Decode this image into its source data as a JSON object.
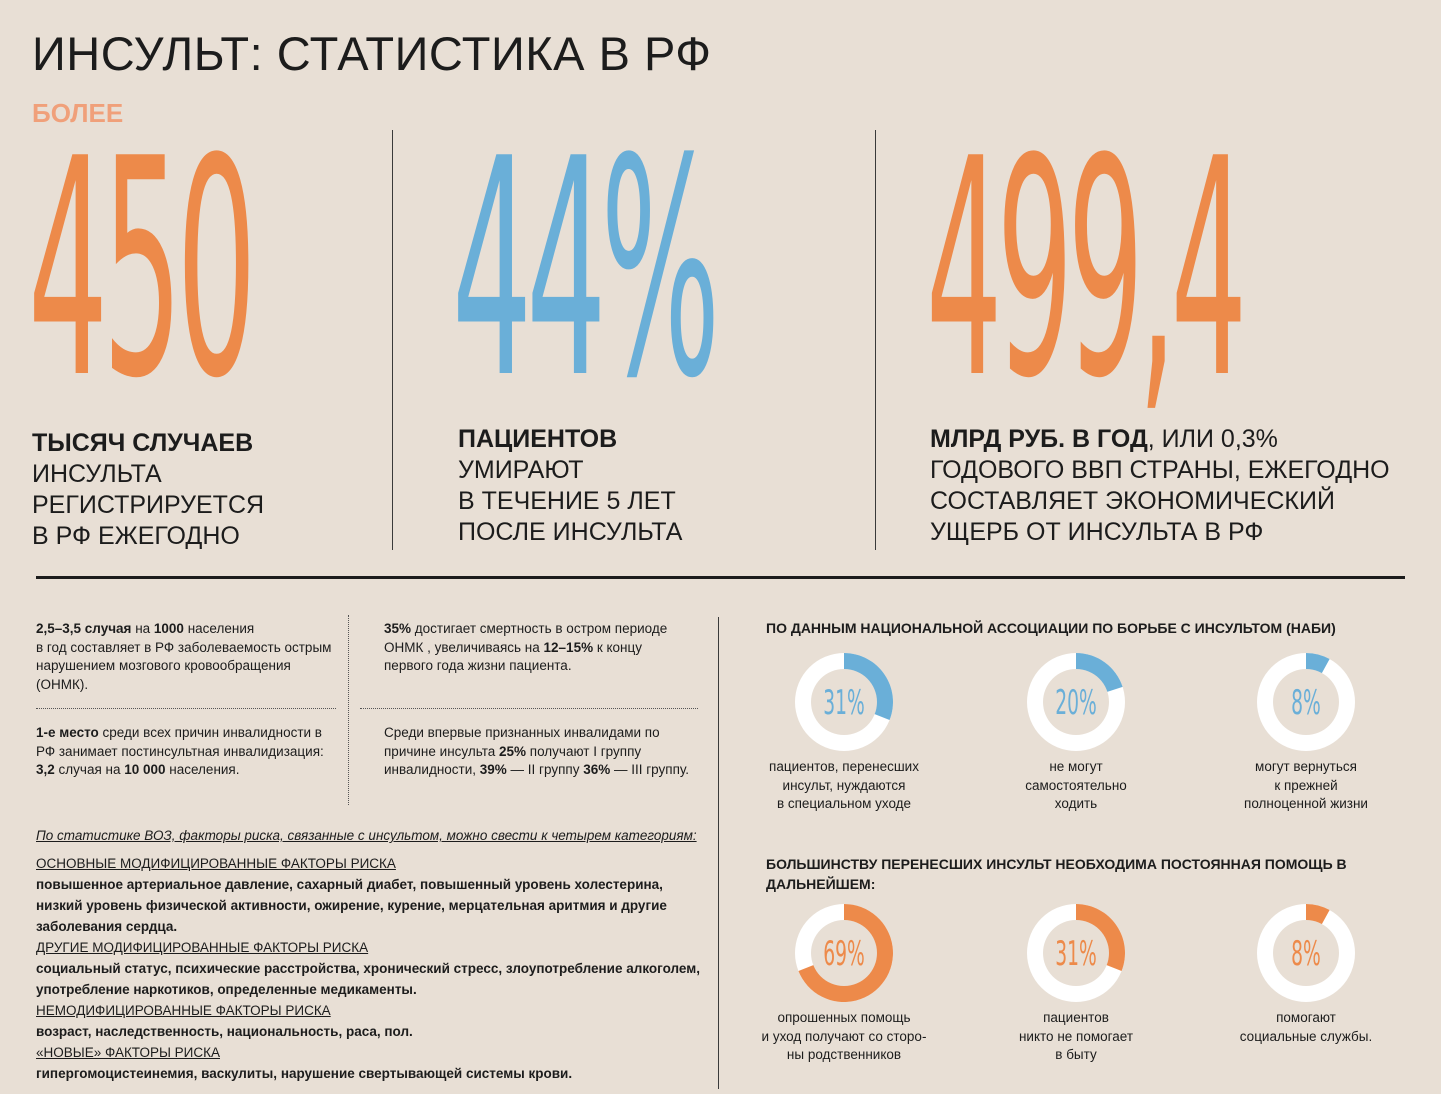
{
  "title": "ИНСУЛЬТ: СТАТИСТИКА В РФ",
  "colors": {
    "orange": "#ed8a4a",
    "blue": "#6aafd8",
    "background": "#e8dfd5"
  },
  "stat1": {
    "prefix": "БОЛЕЕ",
    "number": "450",
    "caption_bold": "ТЫСЯЧ СЛУЧАЕВ",
    "caption_lines": [
      "ИНСУЛЬТА",
      "РЕГИСТРИРУЕТСЯ",
      "В РФ ЕЖЕГОДНО"
    ]
  },
  "stat2": {
    "number": "44%",
    "caption_bold": "ПАЦИЕНТОВ",
    "caption_lines": [
      "УМИРАЮТ",
      "В ТЕЧЕНИЕ 5 ЛЕТ",
      "ПОСЛЕ ИНСУЛЬТА"
    ]
  },
  "stat3": {
    "number": "499,4",
    "caption_bold": "МЛРД РУБ. В ГОД",
    "caption_tail": ", ИЛИ  0,3%",
    "caption_lines": [
      "ГОДОВОГО ВВП СТРАНЫ, ЕЖЕГОДНО",
      "СОСТАВЛЯЕТ ЭКОНОМИЧЕСКИЙ",
      "УЩЕРБ ОТ ИНСУЛЬТА В РФ"
    ]
  },
  "facts": {
    "f1": {
      "b1": "2,5–3,5 случая",
      "t1": " на ",
      "b2": "1000",
      "t2": " населения",
      "rest": "в год составляет в РФ заболеваемость острым нарушением мозгового кровообращения (ОНМК)."
    },
    "f2": {
      "b1": "35%",
      "t1": " достигает смертность в остром периоде ОНМК , увеличиваясь на ",
      "b2": "12–15%",
      "rest": " к концу первого года жизни пациента."
    },
    "f3": {
      "b1": "1-е место",
      "t1": " среди всех причин инвалидности в РФ занимает постинсультная инвалидизация: ",
      "b2": "3,2",
      "t2": " случая на ",
      "b3": "10 000",
      "t3": " населения."
    },
    "f4": {
      "t1": "Среди впервые признанных инвалидами по причине инсульта ",
      "b1": "25%",
      "t2": " получают I группу инвалидности, ",
      "b2": "39%",
      "t3": " — II группу ",
      "b3": "36%",
      "t4": " — III группу."
    }
  },
  "who_intro": "По статистике ВОЗ, факторы риска, связанные с инсультом, можно свести к четырем категориям:",
  "risk_factors": [
    {
      "heading": "ОСНОВНЫЕ МОДИФИЦИРОВАННЫЕ ФАКТОРЫ РИСКА ",
      "body": "повышенное артериальное давление, сахарный диабет, повышенный уровень холестерина, низкий уровень физической активности, ожирение, курение, мерцательная аритмия и другие заболевания сердца."
    },
    {
      "heading": "ДРУГИЕ МОДИФИЦИРОВАННЫЕ ФАКТОРЫ РИСКА",
      "body": "социальный статус, психические расстройства, хронический стресс, злоупотребление алкоголем, употребление наркотиков, определенные медикаменты."
    },
    {
      "heading": "НЕМОДИФИЦИРОВАННЫЕ ФАКТОРЫ РИСКА",
      "body": "возраст, наследственность, национальность, раса, пол."
    },
    {
      "heading": "«НОВЫЕ» ФАКТОРЫ РИСКА",
      "body": "гипергомоцистеинемия, васкулиты, нарушение свертывающей системы крови."
    }
  ],
  "section1_heading": "ПО ДАННЫМ НАЦИОНАЛЬНОЙ АССОЦИАЦИИ ПО БОРЬБЕ С ИНСУЛЬТОМ (НАБИ)",
  "section2_heading": "БОЛЬШИНСТВУ ПЕРЕНЕСШИХ ИНСУЛЬТ НЕОБХОДИМА ПОСТОЯННАЯ ПОМОЩЬ В ДАЛЬНЕЙШЕМ:",
  "donuts": [
    {
      "label": "31%",
      "percent": 31,
      "color": "#6aafd8",
      "caption": [
        "пациентов, перенесших",
        "инсульт, нуждаются",
        "в специальном уходе"
      ]
    },
    {
      "label": "20%",
      "percent": 20,
      "color": "#6aafd8",
      "caption": [
        "не могут",
        "самостоятельно",
        "ходить"
      ]
    },
    {
      "label": "8%",
      "percent": 8,
      "color": "#6aafd8",
      "caption": [
        "могут вернуться",
        "к прежней",
        "полноценной жизни"
      ]
    },
    {
      "label": "69%",
      "percent": 69,
      "color": "#ed8a4a",
      "caption": [
        "опрошенных помощь",
        "и уход получают со сторо-",
        "ны родственников"
      ]
    },
    {
      "label": "31%",
      "percent": 31,
      "color": "#ed8a4a",
      "caption": [
        "пациентов",
        "никто не помогает",
        "в быту"
      ]
    },
    {
      "label": "8%",
      "percent": 8,
      "color": "#ed8a4a",
      "caption": [
        "помогают",
        "социальные службы."
      ]
    }
  ]
}
